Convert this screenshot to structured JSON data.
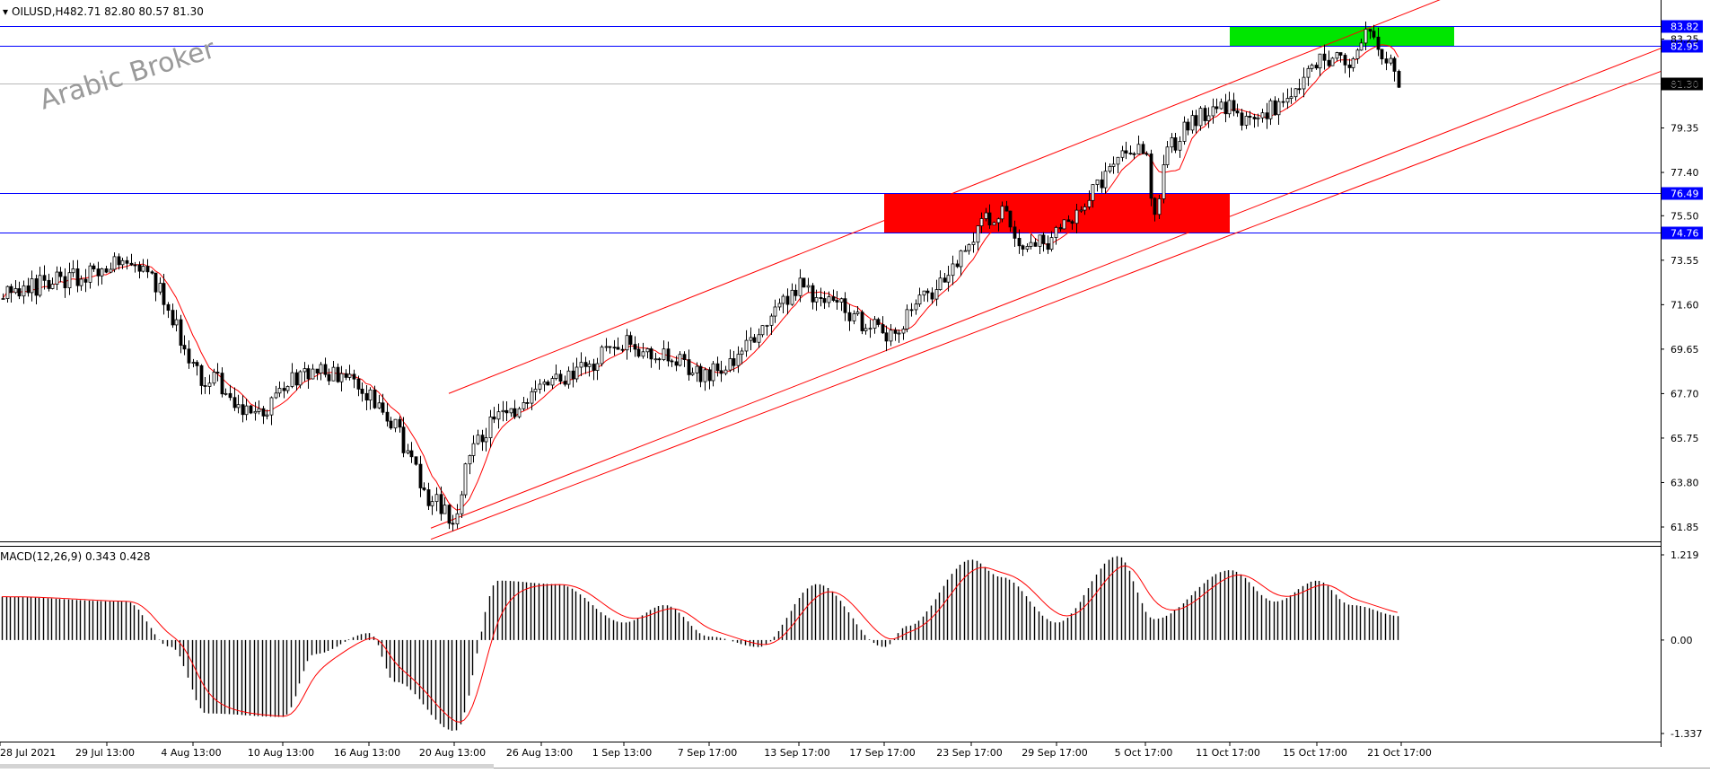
{
  "header": {
    "symbol_text": "OILUSD,H4",
    "ohlc_text": "82.71 82.80 80.57 81.30"
  },
  "watermark": "Arabic Broker",
  "price_axis": {
    "tick_labels": [
      "83.25",
      "81.30",
      "79.35",
      "77.40",
      "75.50",
      "73.55",
      "71.60",
      "69.65",
      "67.70",
      "65.75",
      "63.80",
      "61.85"
    ],
    "tick_values": [
      83.25,
      81.3,
      79.35,
      77.4,
      75.5,
      73.55,
      71.6,
      69.65,
      67.7,
      65.75,
      63.8,
      61.85
    ]
  },
  "level_lines": [
    {
      "label": "83.82",
      "value": 83.82,
      "color": "#0000ff"
    },
    {
      "label": "82.95",
      "value": 82.95,
      "color": "#0000ff"
    },
    {
      "label": "76.49",
      "value": 76.49,
      "color": "#0000ff"
    },
    {
      "label": "74.76",
      "value": 74.76,
      "color": "#0000ff"
    }
  ],
  "current_price": {
    "label": "81.30",
    "value": 81.3
  },
  "zones": [
    {
      "name": "resistance-zone",
      "color": "#00e600",
      "from_time": "11 Oct 17:00",
      "to_time": "after 21 Oct",
      "price_low": 82.95,
      "price_high": 83.82
    },
    {
      "name": "support-zone",
      "color": "#ff0000",
      "from_time": "17 Sep 17:00",
      "to_time": "11 Oct 17:00",
      "price_low": 74.76,
      "price_high": 76.49
    }
  ],
  "macd": {
    "label": "MACD(12,26,9) 0.343 0.428",
    "tick_labels": [
      "1.219",
      "0.00",
      "-1.337"
    ],
    "tick_values": [
      1.219,
      0.0,
      -1.337
    ]
  },
  "time_axis": {
    "labels": [
      "28 Jul 2021",
      "29 Jul 13:00",
      "4 Aug 13:00",
      "10 Aug 13:00",
      "16 Aug 13:00",
      "20 Aug 13:00",
      "26 Aug 13:00",
      "1 Sep 13:00",
      "7 Sep 17:00",
      "13 Sep 17:00",
      "17 Sep 17:00",
      "23 Sep 17:00",
      "29 Sep 17:00",
      "5 Oct 17:00",
      "11 Oct 17:00",
      "15 Oct 17:00",
      "21 Oct 17:00"
    ]
  },
  "colors": {
    "candles": "#000000",
    "moving_average": "#ff0000",
    "channel_lines": "#ff0000",
    "level_lines": "#0000ff",
    "price_label_bg": "#0000ff",
    "current_price_bg": "#000000"
  },
  "chart_data": {
    "type": "candlestick",
    "symbol": "OILUSD",
    "timeframe": "H4",
    "ylim": [
      61.0,
      84.5
    ],
    "price_path": [
      {
        "time": "28 Jul 2021",
        "close": 72.0
      },
      {
        "time": "29 Jul 13:00",
        "close": 73.2
      },
      {
        "time": "30 Jul",
        "close": 73.6
      },
      {
        "time": "2 Aug",
        "close": 72.3
      },
      {
        "time": "4 Aug 13:00",
        "close": 68.6
      },
      {
        "time": "6 Aug",
        "close": 68.2
      },
      {
        "time": "9 Aug",
        "close": 66.5
      },
      {
        "time": "10 Aug 13:00",
        "close": 67.9
      },
      {
        "time": "12 Aug",
        "close": 68.9
      },
      {
        "time": "16 Aug 13:00",
        "close": 67.8
      },
      {
        "time": "18 Aug",
        "close": 66.2
      },
      {
        "time": "19 Aug",
        "close": 63.2
      },
      {
        "time": "20 Aug 13:00",
        "close": 62.2
      },
      {
        "time": "23 Aug",
        "close": 65.6
      },
      {
        "time": "26 Aug 13:00",
        "close": 68.0
      },
      {
        "time": "30 Aug",
        "close": 68.8
      },
      {
        "time": "1 Sep 13:00",
        "close": 69.9
      },
      {
        "time": "3 Sep",
        "close": 69.3
      },
      {
        "time": "7 Sep 17:00",
        "close": 68.5
      },
      {
        "time": "9 Sep",
        "close": 69.7
      },
      {
        "time": "13 Sep 17:00",
        "close": 72.4
      },
      {
        "time": "15 Sep",
        "close": 71.7
      },
      {
        "time": "17 Sep 17:00",
        "close": 70.2
      },
      {
        "time": "20 Sep",
        "close": 71.1
      },
      {
        "time": "22 Sep",
        "close": 72.7
      },
      {
        "time": "23 Sep 17:00",
        "close": 74.6
      },
      {
        "time": "27 Sep",
        "close": 75.9
      },
      {
        "time": "28 Sep",
        "close": 74.0
      },
      {
        "time": "29 Sep 17:00",
        "close": 74.6
      },
      {
        "time": "1 Oct",
        "close": 75.6
      },
      {
        "time": "4 Oct",
        "close": 78.4
      },
      {
        "time": "5 Oct 17:00",
        "close": 78.6
      },
      {
        "time": "6 Oct",
        "close": 75.4
      },
      {
        "time": "7 Oct",
        "close": 78.3
      },
      {
        "time": "8 Oct",
        "close": 79.8
      },
      {
        "time": "11 Oct 17:00",
        "close": 80.3
      },
      {
        "time": "12 Oct",
        "close": 79.4
      },
      {
        "time": "14 Oct",
        "close": 80.6
      },
      {
        "time": "15 Oct 17:00",
        "close": 82.2
      },
      {
        "time": "18 Oct",
        "close": 82.6
      },
      {
        "time": "19 Oct",
        "close": 81.9
      },
      {
        "time": "20 Oct",
        "close": 83.6
      },
      {
        "time": "21 Oct 17:00",
        "close": 81.3
      }
    ],
    "channels": [
      {
        "from": {
          "time": "20 Aug 13:00",
          "price": 67.8
        },
        "to": {
          "time": "21 Oct 17:00",
          "price": 84.3
        }
      },
      {
        "from": {
          "time": "20 Aug 13:00",
          "price": 62.2
        },
        "to": {
          "time": "21 Oct 17:00",
          "price": 78.4
        }
      },
      {
        "from": {
          "time": "20 Aug 13:00",
          "price": 61.7
        },
        "to": {
          "time": "21 Oct 17:00",
          "price": 77.5
        }
      }
    ],
    "macd_hist_path": [
      {
        "time": "28 Jul 2021",
        "value": 0.62
      },
      {
        "time": "30 Jul",
        "value": 0.55
      },
      {
        "time": "3 Aug",
        "value": -0.1
      },
      {
        "time": "5 Aug",
        "value": -1.05
      },
      {
        "time": "10 Aug",
        "value": -1.1
      },
      {
        "time": "12 Aug",
        "value": -0.2
      },
      {
        "time": "16 Aug 13:00",
        "value": 0.1
      },
      {
        "time": "18 Aug",
        "value": -0.6
      },
      {
        "time": "20 Aug 13:00",
        "value": -1.3
      },
      {
        "time": "24 Aug",
        "value": 0.85
      },
      {
        "time": "27 Aug",
        "value": 0.8
      },
      {
        "time": "1 Sep 13:00",
        "value": 0.25
      },
      {
        "time": "3 Sep",
        "value": 0.5
      },
      {
        "time": "7 Sep 17:00",
        "value": 0.05
      },
      {
        "time": "10 Sep",
        "value": -0.1
      },
      {
        "time": "14 Sep",
        "value": 0.8
      },
      {
        "time": "17 Sep 17:00",
        "value": -0.1
      },
      {
        "time": "20 Sep",
        "value": 0.2
      },
      {
        "time": "23 Sep 17:00",
        "value": 1.15
      },
      {
        "time": "27 Sep",
        "value": 0.9
      },
      {
        "time": "29 Sep 17:00",
        "value": 0.25
      },
      {
        "time": "4 Oct",
        "value": 1.2
      },
      {
        "time": "6 Oct",
        "value": 0.3
      },
      {
        "time": "11 Oct 17:00",
        "value": 1.0
      },
      {
        "time": "13 Oct",
        "value": 0.55
      },
      {
        "time": "15 Oct 17:00",
        "value": 0.85
      },
      {
        "time": "19 Oct",
        "value": 0.5
      },
      {
        "time": "21 Oct 17:00",
        "value": 0.34
      }
    ]
  }
}
